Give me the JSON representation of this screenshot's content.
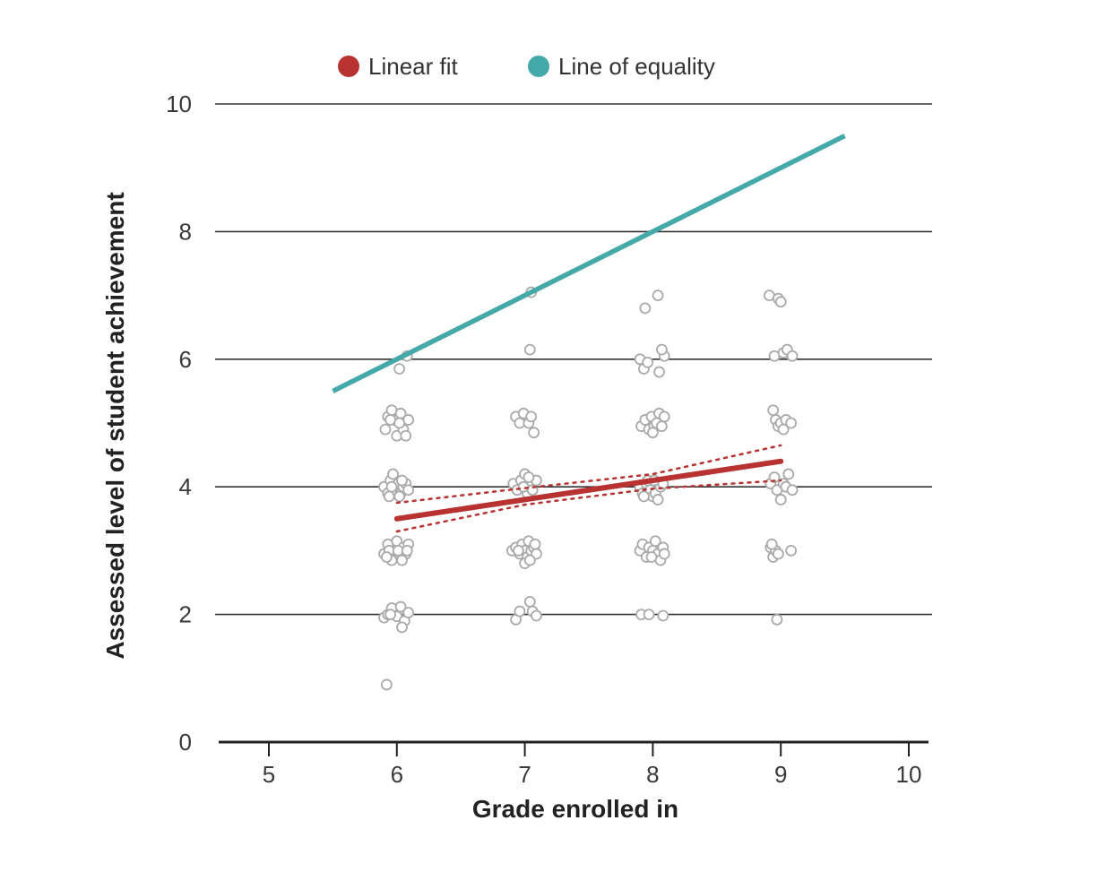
{
  "chart_data": {
    "type": "scatter",
    "xlabel": "Grade enrolled in",
    "ylabel": "Assessed level of student achievement",
    "xlim": [
      4.6,
      10.15
    ],
    "ylim": [
      0,
      10
    ],
    "x_ticks": [
      "5",
      "6",
      "7",
      "8",
      "9",
      "10"
    ],
    "y_ticks": [
      "0",
      "2",
      "4",
      "6",
      "8",
      "10"
    ],
    "grid": "horizontal",
    "legend_position": "top",
    "legend": [
      {
        "label": "Linear fit",
        "color": "#b83232"
      },
      {
        "label": "Line of equality",
        "color": "#45a9aa"
      }
    ],
    "points_color": "#aaaaaa",
    "points": [
      {
        "x": 5.92,
        "y": 0.9
      },
      {
        "x": 5.9,
        "y": 1.95
      },
      {
        "x": 5.93,
        "y": 2.0
      },
      {
        "x": 5.96,
        "y": 2.1
      },
      {
        "x": 6.0,
        "y": 1.97
      },
      {
        "x": 6.03,
        "y": 2.12
      },
      {
        "x": 6.06,
        "y": 1.9
      },
      {
        "x": 6.04,
        "y": 1.8
      },
      {
        "x": 6.09,
        "y": 2.03
      },
      {
        "x": 5.95,
        "y": 2.0
      },
      {
        "x": 5.9,
        "y": 2.95
      },
      {
        "x": 5.93,
        "y": 3.1
      },
      {
        "x": 5.96,
        "y": 2.85
      },
      {
        "x": 5.98,
        "y": 3.0
      },
      {
        "x": 6.0,
        "y": 3.15
      },
      {
        "x": 6.03,
        "y": 2.9
      },
      {
        "x": 6.05,
        "y": 3.05
      },
      {
        "x": 6.07,
        "y": 2.95
      },
      {
        "x": 6.09,
        "y": 3.1
      },
      {
        "x": 5.94,
        "y": 3.0
      },
      {
        "x": 6.01,
        "y": 3.0
      },
      {
        "x": 6.04,
        "y": 2.85
      },
      {
        "x": 5.92,
        "y": 2.9
      },
      {
        "x": 6.08,
        "y": 3.0
      },
      {
        "x": 5.9,
        "y": 4.0
      },
      {
        "x": 5.93,
        "y": 3.9
      },
      {
        "x": 5.95,
        "y": 4.1
      },
      {
        "x": 5.97,
        "y": 4.2
      },
      {
        "x": 5.99,
        "y": 3.95
      },
      {
        "x": 6.01,
        "y": 4.05
      },
      {
        "x": 6.03,
        "y": 3.9
      },
      {
        "x": 6.05,
        "y": 4.0
      },
      {
        "x": 6.07,
        "y": 4.05
      },
      {
        "x": 6.09,
        "y": 3.95
      },
      {
        "x": 5.94,
        "y": 3.85
      },
      {
        "x": 6.02,
        "y": 3.85
      },
      {
        "x": 5.96,
        "y": 4.0
      },
      {
        "x": 6.04,
        "y": 4.1
      },
      {
        "x": 5.91,
        "y": 4.9
      },
      {
        "x": 5.93,
        "y": 5.1
      },
      {
        "x": 5.96,
        "y": 5.2
      },
      {
        "x": 5.98,
        "y": 5.05
      },
      {
        "x": 6.0,
        "y": 4.8
      },
      {
        "x": 6.03,
        "y": 5.15
      },
      {
        "x": 6.05,
        "y": 4.9
      },
      {
        "x": 6.07,
        "y": 4.8
      },
      {
        "x": 6.09,
        "y": 5.05
      },
      {
        "x": 5.95,
        "y": 5.05
      },
      {
        "x": 6.02,
        "y": 5.0
      },
      {
        "x": 6.02,
        "y": 5.85
      },
      {
        "x": 6.08,
        "y": 6.05
      },
      {
        "x": 6.93,
        "y": 1.92
      },
      {
        "x": 6.96,
        "y": 2.05
      },
      {
        "x": 7.04,
        "y": 2.2
      },
      {
        "x": 7.06,
        "y": 2.05
      },
      {
        "x": 7.09,
        "y": 1.98
      },
      {
        "x": 6.9,
        "y": 3.0
      },
      {
        "x": 6.93,
        "y": 3.05
      },
      {
        "x": 6.96,
        "y": 2.95
      },
      {
        "x": 6.98,
        "y": 3.1
      },
      {
        "x": 7.0,
        "y": 3.0
      },
      {
        "x": 7.02,
        "y": 2.9
      },
      {
        "x": 7.03,
        "y": 3.15
      },
      {
        "x": 7.05,
        "y": 3.0
      },
      {
        "x": 7.07,
        "y": 3.05
      },
      {
        "x": 7.09,
        "y": 2.95
      },
      {
        "x": 7.0,
        "y": 2.8
      },
      {
        "x": 7.04,
        "y": 2.85
      },
      {
        "x": 7.08,
        "y": 3.1
      },
      {
        "x": 6.95,
        "y": 3.0
      },
      {
        "x": 6.91,
        "y": 4.05
      },
      {
        "x": 6.94,
        "y": 3.95
      },
      {
        "x": 6.97,
        "y": 4.1
      },
      {
        "x": 7.0,
        "y": 4.2
      },
      {
        "x": 7.02,
        "y": 3.9
      },
      {
        "x": 7.04,
        "y": 4.05
      },
      {
        "x": 7.06,
        "y": 3.95
      },
      {
        "x": 7.09,
        "y": 4.1
      },
      {
        "x": 6.99,
        "y": 4.0
      },
      {
        "x": 7.03,
        "y": 4.15
      },
      {
        "x": 6.93,
        "y": 5.1
      },
      {
        "x": 6.96,
        "y": 5.0
      },
      {
        "x": 6.99,
        "y": 5.15
      },
      {
        "x": 7.03,
        "y": 5.0
      },
      {
        "x": 7.05,
        "y": 5.1
      },
      {
        "x": 7.07,
        "y": 4.85
      },
      {
        "x": 7.04,
        "y": 6.15
      },
      {
        "x": 7.05,
        "y": 7.05
      },
      {
        "x": 7.91,
        "y": 2.0
      },
      {
        "x": 7.97,
        "y": 2.0
      },
      {
        "x": 8.08,
        "y": 1.98
      },
      {
        "x": 7.9,
        "y": 3.0
      },
      {
        "x": 7.92,
        "y": 3.1
      },
      {
        "x": 7.95,
        "y": 2.9
      },
      {
        "x": 7.97,
        "y": 3.05
      },
      {
        "x": 8.0,
        "y": 3.0
      },
      {
        "x": 8.02,
        "y": 3.15
      },
      {
        "x": 8.04,
        "y": 2.95
      },
      {
        "x": 8.06,
        "y": 2.85
      },
      {
        "x": 8.08,
        "y": 3.05
      },
      {
        "x": 8.09,
        "y": 2.95
      },
      {
        "x": 7.99,
        "y": 2.9
      },
      {
        "x": 7.9,
        "y": 4.0
      },
      {
        "x": 7.92,
        "y": 3.9
      },
      {
        "x": 7.95,
        "y": 4.05
      },
      {
        "x": 7.98,
        "y": 3.95
      },
      {
        "x": 8.0,
        "y": 3.85
      },
      {
        "x": 8.02,
        "y": 3.9
      },
      {
        "x": 8.04,
        "y": 3.8
      },
      {
        "x": 8.06,
        "y": 4.0
      },
      {
        "x": 8.08,
        "y": 4.05
      },
      {
        "x": 7.96,
        "y": 4.1
      },
      {
        "x": 7.93,
        "y": 3.85
      },
      {
        "x": 8.01,
        "y": 4.1
      },
      {
        "x": 7.91,
        "y": 4.95
      },
      {
        "x": 7.94,
        "y": 5.05
      },
      {
        "x": 7.97,
        "y": 4.9
      },
      {
        "x": 7.99,
        "y": 5.1
      },
      {
        "x": 8.01,
        "y": 4.95
      },
      {
        "x": 8.03,
        "y": 5.0
      },
      {
        "x": 8.05,
        "y": 5.15
      },
      {
        "x": 8.07,
        "y": 4.95
      },
      {
        "x": 8.09,
        "y": 5.1
      },
      {
        "x": 8.0,
        "y": 4.85
      },
      {
        "x": 7.9,
        "y": 6.0
      },
      {
        "x": 7.93,
        "y": 5.85
      },
      {
        "x": 7.96,
        "y": 5.95
      },
      {
        "x": 8.05,
        "y": 5.8
      },
      {
        "x": 8.09,
        "y": 6.05
      },
      {
        "x": 8.07,
        "y": 6.15
      },
      {
        "x": 7.94,
        "y": 6.8
      },
      {
        "x": 8.04,
        "y": 7.0
      },
      {
        "x": 8.97,
        "y": 1.92
      },
      {
        "x": 8.92,
        "y": 3.05
      },
      {
        "x": 8.94,
        "y": 2.9
      },
      {
        "x": 8.96,
        "y": 3.0
      },
      {
        "x": 8.98,
        "y": 2.95
      },
      {
        "x": 8.93,
        "y": 3.1
      },
      {
        "x": 9.08,
        "y": 3.0
      },
      {
        "x": 8.92,
        "y": 4.05
      },
      {
        "x": 8.95,
        "y": 4.15
      },
      {
        "x": 8.97,
        "y": 3.95
      },
      {
        "x": 9.0,
        "y": 3.8
      },
      {
        "x": 9.02,
        "y": 4.05
      },
      {
        "x": 9.04,
        "y": 4.0
      },
      {
        "x": 9.06,
        "y": 4.2
      },
      {
        "x": 9.09,
        "y": 3.95
      },
      {
        "x": 8.94,
        "y": 5.2
      },
      {
        "x": 8.96,
        "y": 5.05
      },
      {
        "x": 8.98,
        "y": 4.95
      },
      {
        "x": 9.0,
        "y": 5.0
      },
      {
        "x": 9.02,
        "y": 4.9
      },
      {
        "x": 9.04,
        "y": 5.05
      },
      {
        "x": 9.08,
        "y": 5.0
      },
      {
        "x": 8.95,
        "y": 6.05
      },
      {
        "x": 9.02,
        "y": 6.1
      },
      {
        "x": 9.05,
        "y": 6.15
      },
      {
        "x": 9.09,
        "y": 6.05
      },
      {
        "x": 8.91,
        "y": 7.0
      },
      {
        "x": 8.98,
        "y": 6.95
      },
      {
        "x": 9.0,
        "y": 6.9
      }
    ],
    "linear_fit": [
      [
        6,
        3.5
      ],
      [
        9,
        4.4
      ]
    ],
    "ci_upper": [
      [
        6,
        3.75
      ],
      [
        7,
        3.98
      ],
      [
        8,
        4.2
      ],
      [
        9,
        4.65
      ]
    ],
    "ci_lower": [
      [
        6,
        3.3
      ],
      [
        7,
        3.72
      ],
      [
        8,
        3.97
      ],
      [
        9,
        4.1
      ]
    ],
    "line_of_equality": [
      [
        5.5,
        5.5
      ],
      [
        9.5,
        9.5
      ]
    ]
  }
}
